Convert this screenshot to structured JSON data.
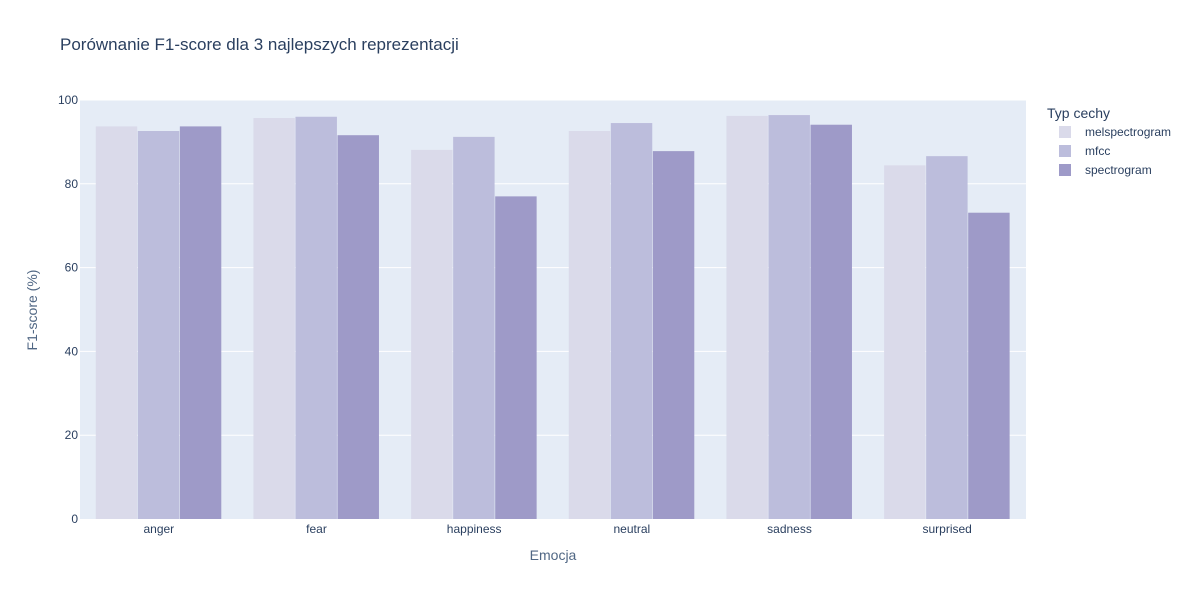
{
  "chart_data": {
    "type": "bar",
    "title": "Porównanie F1-score dla 3 najlepszych reprezentacji",
    "xlabel": "Emocja",
    "ylabel": "F1-score (%)",
    "ylim": [
      0,
      100
    ],
    "yticks": [
      0,
      20,
      40,
      60,
      80,
      100
    ],
    "grid": true,
    "legend_title": "Typ cechy",
    "legend_position": "top-right",
    "categories": [
      "anger",
      "fear",
      "happiness",
      "neutral",
      "sadness",
      "surprised"
    ],
    "series": [
      {
        "name": "melspectrogram",
        "color": "#dadaea",
        "values": [
          93.7,
          95.7,
          88.1,
          92.6,
          96.2,
          84.4
        ]
      },
      {
        "name": "mfcc",
        "color": "#bcbddc",
        "values": [
          92.6,
          96.0,
          91.2,
          94.5,
          96.4,
          86.6
        ]
      },
      {
        "name": "spectrogram",
        "color": "#9e9ac8",
        "values": [
          93.7,
          91.6,
          77.0,
          87.8,
          94.1,
          73.1
        ]
      }
    ],
    "plot_bg": "#e5ecf6"
  }
}
